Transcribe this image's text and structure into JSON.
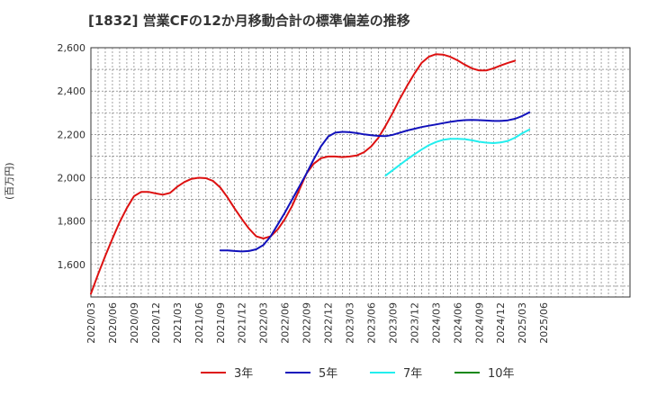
{
  "chart_data": {
    "type": "line",
    "title": "[1832]  営業CFの12か月移動合計の標準偏差の推移",
    "ylabel": "(百万円)",
    "xlabel": "",
    "ylim": [
      1450,
      2600
    ],
    "yticks": [
      1600,
      1800,
      2000,
      2200,
      2400,
      2600
    ],
    "ytick_labels": [
      "1,600",
      "1,800",
      "2,000",
      "2,200",
      "2,400",
      "2,600"
    ],
    "xticks": [
      "2020/03",
      "2020/06",
      "2020/09",
      "2020/12",
      "2021/03",
      "2021/06",
      "2021/09",
      "2021/12",
      "2022/03",
      "2022/06",
      "2022/09",
      "2022/12",
      "2023/03",
      "2023/06",
      "2023/09",
      "2023/12",
      "2024/03",
      "2024/06",
      "2024/09",
      "2024/12",
      "2025/03",
      "2025/06"
    ],
    "grid": true,
    "legend_position": "bottom",
    "series": [
      {
        "name": "3年",
        "color": "#dd1111",
        "start": "2020/03",
        "values": [
          1465,
          1555,
          1640,
          1720,
          1795,
          1860,
          1915,
          1935,
          1935,
          1928,
          1922,
          1930,
          1958,
          1980,
          1995,
          2000,
          1998,
          1985,
          1955,
          1910,
          1858,
          1810,
          1765,
          1730,
          1720,
          1730,
          1762,
          1810,
          1870,
          1945,
          2020,
          2065,
          2090,
          2098,
          2098,
          2095,
          2098,
          2103,
          2118,
          2145,
          2185,
          2240,
          2300,
          2365,
          2425,
          2480,
          2530,
          2558,
          2570,
          2568,
          2558,
          2542,
          2522,
          2505,
          2495,
          2495,
          2505,
          2518,
          2530,
          2540
        ]
      },
      {
        "name": "5年",
        "color": "#1111bb",
        "start": "2021/09",
        "values": [
          1665,
          1665,
          1662,
          1660,
          1662,
          1670,
          1690,
          1730,
          1785,
          1840,
          1900,
          1960,
          2020,
          2085,
          2145,
          2190,
          2208,
          2212,
          2210,
          2206,
          2200,
          2196,
          2193,
          2192,
          2198,
          2208,
          2218,
          2226,
          2234,
          2240,
          2246,
          2252,
          2258,
          2263,
          2266,
          2267,
          2266,
          2264,
          2262,
          2262,
          2265,
          2272,
          2285,
          2302
        ]
      },
      {
        "name": "7年",
        "color": "#22eeee",
        "start": "2023/08",
        "values": [
          2010,
          2035,
          2060,
          2085,
          2108,
          2130,
          2150,
          2165,
          2175,
          2180,
          2180,
          2178,
          2173,
          2166,
          2162,
          2160,
          2163,
          2170,
          2185,
          2205,
          2222
        ]
      },
      {
        "name": "10年",
        "color": "#118811",
        "start": "2025/03",
        "values": []
      }
    ]
  }
}
